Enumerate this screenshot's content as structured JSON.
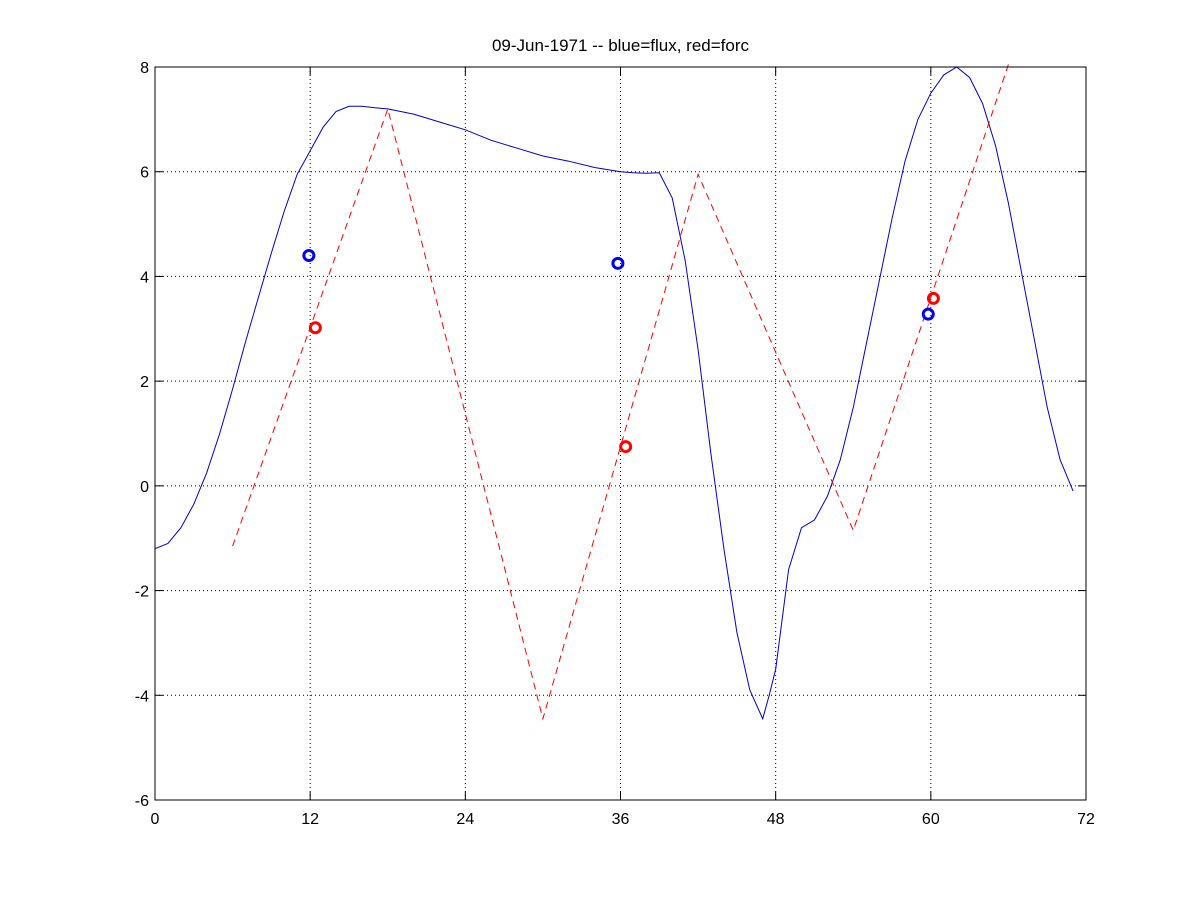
{
  "chart_data": {
    "type": "line",
    "title": "09-Jun-1971 -- blue=flux, red=forc",
    "xlabel": "",
    "ylabel": "",
    "xlim": [
      0,
      72
    ],
    "ylim": [
      -6,
      8
    ],
    "xticks": [
      0,
      12,
      24,
      36,
      48,
      60,
      72
    ],
    "yticks": [
      -6,
      -4,
      -2,
      0,
      2,
      4,
      6,
      8
    ],
    "grid": true,
    "colors": {
      "flux": "#0000cc",
      "forc": "#ff0000",
      "flux_marker": "#0000ff",
      "forc_marker": "#ff0000"
    },
    "series": [
      {
        "color_key": "flux",
        "style": "solid",
        "x": [
          0,
          1,
          2,
          3,
          4,
          5,
          6,
          7,
          8,
          9,
          10,
          11,
          12,
          13,
          14,
          15,
          16,
          17,
          18,
          20,
          22,
          24,
          26,
          28,
          30,
          32,
          34,
          36,
          37,
          38,
          39,
          40,
          41,
          42,
          43,
          44,
          45,
          46,
          47,
          47.5,
          48,
          49,
          50,
          51,
          52,
          53,
          54,
          55,
          56,
          57,
          58,
          59,
          60,
          61,
          62,
          63,
          64,
          65,
          66,
          67,
          68,
          69,
          70,
          71
        ],
        "y": [
          -1.2,
          -1.1,
          -0.8,
          -0.35,
          0.25,
          1.0,
          1.85,
          2.75,
          3.6,
          4.45,
          5.25,
          5.95,
          6.4,
          6.85,
          7.15,
          7.25,
          7.25,
          7.22,
          7.2,
          7.1,
          6.95,
          6.8,
          6.6,
          6.45,
          6.3,
          6.2,
          6.08,
          6.0,
          5.98,
          5.97,
          5.98,
          5.5,
          4.3,
          2.6,
          0.6,
          -1.2,
          -2.8,
          -3.9,
          -4.45,
          -4.0,
          -3.5,
          -1.6,
          -0.8,
          -0.65,
          -0.2,
          0.5,
          1.5,
          2.7,
          3.9,
          5.1,
          6.2,
          7.0,
          7.5,
          7.85,
          8.0,
          7.8,
          7.3,
          6.5,
          5.4,
          4.1,
          2.8,
          1.5,
          0.5,
          -0.1
        ]
      },
      {
        "color_key": "forc",
        "style": "dashed",
        "x": [
          6,
          18,
          30,
          42,
          54,
          66
        ],
        "y": [
          -1.15,
          7.2,
          -4.45,
          5.95,
          -0.85,
          8.05
        ]
      }
    ],
    "markers": [
      {
        "color_key": "flux_marker",
        "x": [
          11.9,
          35.8,
          59.8
        ],
        "y": [
          4.4,
          4.25,
          3.28
        ]
      },
      {
        "color_key": "forc_marker",
        "x": [
          12.4,
          36.4,
          60.2
        ],
        "y": [
          3.02,
          0.75,
          3.58
        ]
      }
    ]
  }
}
